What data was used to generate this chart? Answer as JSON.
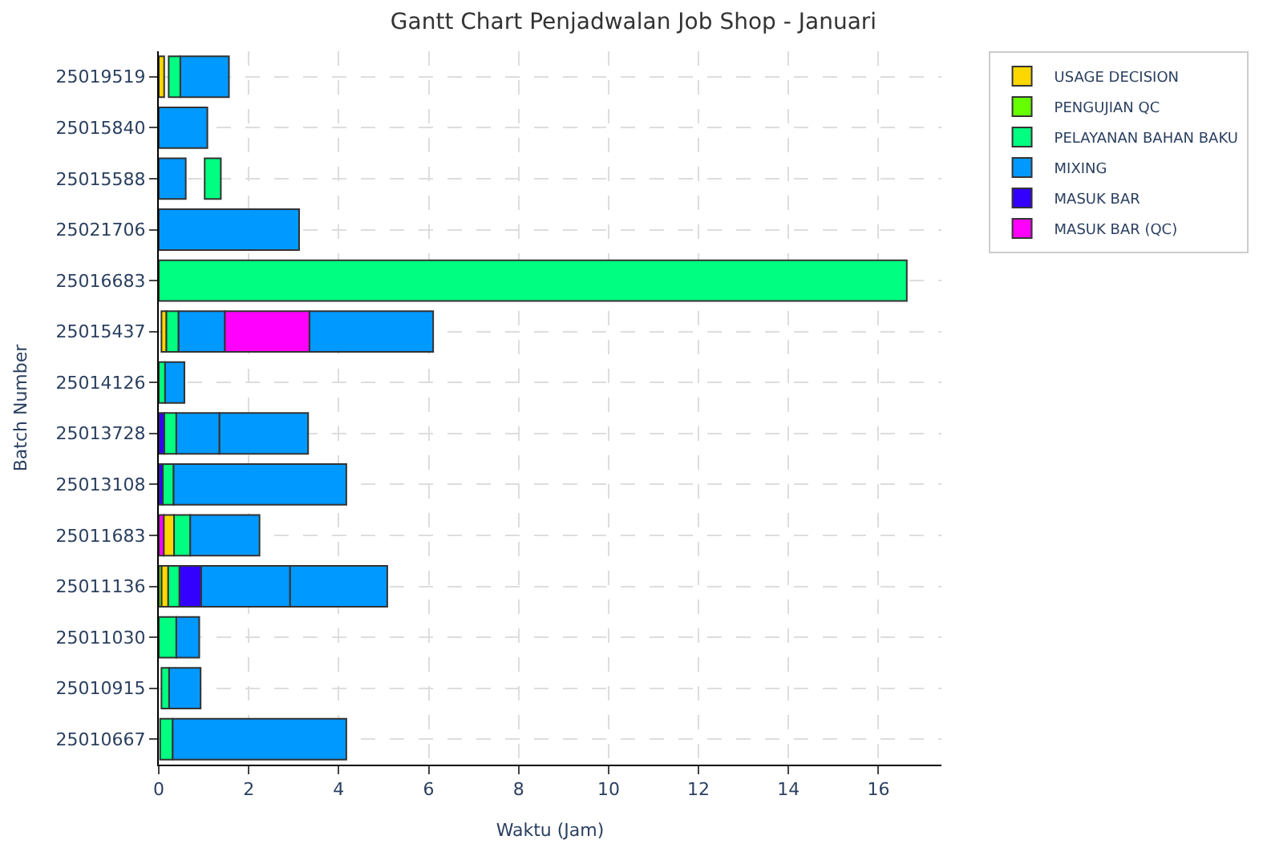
{
  "chart_data": {
    "type": "bar",
    "orientation": "horizontal",
    "title": "Gantt Chart Penjadwalan Job Shop - Januari",
    "xlabel": "Waktu (Jam)",
    "ylabel": "Batch Number",
    "categories": [
      "25019519",
      "25015840",
      "25015588",
      "25021706",
      "25016683",
      "25015437",
      "25014126",
      "25013728",
      "25013108",
      "25011683",
      "25011136",
      "25011030",
      "25010915",
      "25010667"
    ],
    "series": [
      {
        "name": "USAGE DECISION",
        "color": "#ffd700",
        "base": [
          0,
          null,
          null,
          null,
          null,
          0.06,
          null,
          null,
          null,
          0.11,
          0.06,
          null,
          null,
          null
        ],
        "values": [
          0.12,
          null,
          null,
          null,
          null,
          0.11,
          null,
          null,
          null,
          0.23,
          0.15,
          null,
          null,
          null
        ]
      },
      {
        "name": "PENGUJIAN QC",
        "color": "#66ff00",
        "base": [
          null,
          null,
          null,
          null,
          null,
          null,
          null,
          null,
          null,
          null,
          0,
          null,
          null,
          null
        ],
        "values": [
          null,
          null,
          null,
          null,
          null,
          null,
          null,
          null,
          null,
          null,
          0.06,
          null,
          null,
          null
        ]
      },
      {
        "name": "PELAYANAN BAHAN BAKU",
        "color": "#00ff80",
        "base": [
          0.22,
          null,
          1.02,
          null,
          0,
          0.17,
          0,
          0.12,
          0.09,
          0.34,
          0.21,
          0,
          0.06,
          0.03
        ],
        "values": [
          0.26,
          null,
          0.36,
          null,
          16.63,
          0.27,
          0.14,
          0.27,
          0.24,
          0.36,
          0.25,
          0.39,
          0.17,
          0.28
        ]
      },
      {
        "name": "MIXING",
        "color": "#0099ff",
        "base": [
          0.48,
          0,
          0,
          0,
          null,
          0.44,
          0.14,
          0.39,
          0.33,
          0.7,
          0.94,
          0.39,
          0.23,
          0.31
        ],
        "values": [
          1.08,
          1.08,
          0.6,
          3.12,
          null,
          1.03,
          0.43,
          0.96,
          3.84,
          1.54,
          1.98,
          0.51,
          0.7,
          3.86
        ]
      },
      {
        "color": "#0099ff",
        "base": [
          null,
          null,
          null,
          null,
          null,
          3.35,
          null,
          1.35,
          null,
          null,
          2.92,
          null,
          null,
          null
        ],
        "values": [
          null,
          null,
          null,
          null,
          null,
          2.75,
          null,
          1.97,
          null,
          null,
          2.16,
          null,
          null,
          null
        ]
      },
      {
        "name": "MASUK BAR",
        "color": "#3300ff",
        "base": [
          null,
          null,
          null,
          null,
          null,
          null,
          null,
          0,
          0,
          null,
          0.46,
          null,
          null,
          null
        ],
        "values": [
          null,
          null,
          null,
          null,
          null,
          null,
          null,
          0.12,
          0.09,
          null,
          0.48,
          null,
          null,
          null
        ]
      },
      {
        "name": "MASUK BAR (QC)",
        "color": "#ff00ff",
        "base": [
          null,
          null,
          null,
          null,
          null,
          1.47,
          null,
          null,
          null,
          0,
          null,
          null,
          null,
          null
        ],
        "values": [
          null,
          null,
          null,
          null,
          null,
          1.88,
          null,
          null,
          null,
          0.11,
          null,
          null,
          null,
          null
        ]
      }
    ],
    "xlim": [
      0,
      17.4
    ],
    "xticks": [
      0,
      2,
      4,
      6,
      8,
      10,
      12,
      14,
      16
    ],
    "grid": true,
    "legend": "top right"
  }
}
